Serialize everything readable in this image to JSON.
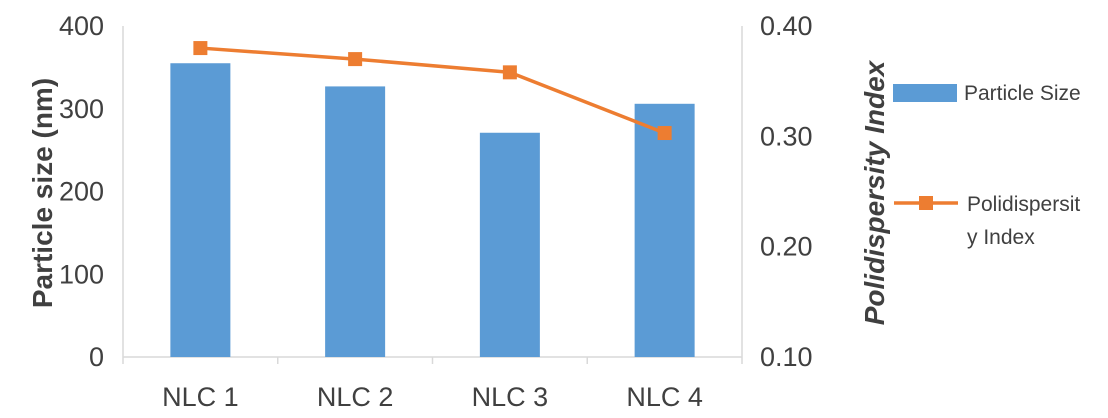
{
  "chart_data": {
    "type": "bar+line",
    "categories": [
      "NLC 1",
      "NLC 2",
      "NLC 3",
      "NLC 4"
    ],
    "series": [
      {
        "name": "Particle Size",
        "type": "bar",
        "axis": "left",
        "values": [
          355,
          327,
          271,
          306
        ],
        "color": "#5b9bd5"
      },
      {
        "name": "Polidispersity Index",
        "legend_lines": [
          "Polidispersit",
          "y Index"
        ],
        "type": "line",
        "axis": "right",
        "marker": "square",
        "values": [
          0.38,
          0.37,
          0.358,
          0.303
        ],
        "color": "#ed7d31"
      }
    ],
    "ylabel": "Particle size (nm)",
    "y2label": "Polidispersity Index",
    "ylim": [
      0,
      400
    ],
    "y2lim": [
      0.1,
      0.4
    ],
    "yticks": [
      "0",
      "100",
      "200",
      "300",
      "400"
    ],
    "y2ticks": [
      "0.10",
      "0.20",
      "0.30",
      "0.40"
    ],
    "grid": false,
    "legend_position": "right"
  }
}
